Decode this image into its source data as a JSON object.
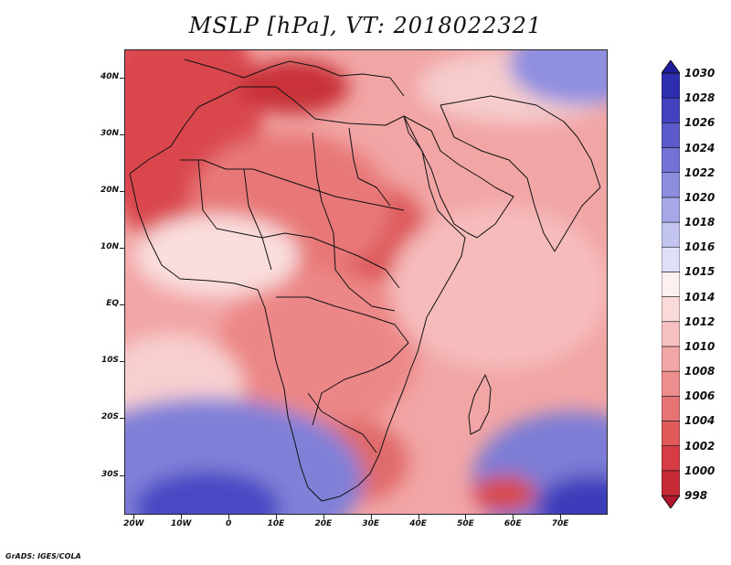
{
  "title": "MSLP [hPa], VT: 2018022321",
  "footer": "GrADS: IGES/COLA",
  "map": {
    "lon_range": [
      -22,
      80
    ],
    "lat_range": [
      -37,
      45
    ],
    "lat_labels": [
      {
        "lat": 40,
        "text": "40N"
      },
      {
        "lat": 30,
        "text": "30N"
      },
      {
        "lat": 20,
        "text": "20N"
      },
      {
        "lat": 10,
        "text": "10N"
      },
      {
        "lat": 0,
        "text": "EQ"
      },
      {
        "lat": -10,
        "text": "10S"
      },
      {
        "lat": -20,
        "text": "20S"
      },
      {
        "lat": -30,
        "text": "30S"
      }
    ],
    "lon_labels": [
      {
        "lon": -20,
        "text": "20W"
      },
      {
        "lon": -10,
        "text": "10W"
      },
      {
        "lon": 0,
        "text": "0"
      },
      {
        "lon": 10,
        "text": "10E"
      },
      {
        "lon": 20,
        "text": "20E"
      },
      {
        "lon": 30,
        "text": "30E"
      },
      {
        "lon": 40,
        "text": "40E"
      },
      {
        "lon": 50,
        "text": "50E"
      },
      {
        "lon": 60,
        "text": "60E"
      },
      {
        "lon": 70,
        "text": "70E"
      }
    ]
  },
  "colorbar": {
    "levels": [
      "998",
      "1000",
      "1002",
      "1004",
      "1006",
      "1008",
      "1010",
      "1012",
      "1014",
      "1015",
      "1016",
      "1018",
      "1020",
      "1022",
      "1024",
      "1026",
      "1028",
      "1030"
    ],
    "colors": [
      "#b2182b",
      "#c62a35",
      "#d73c44",
      "#e05a5a",
      "#e77474",
      "#ee8d8d",
      "#f3a6a6",
      "#f8c1c1",
      "#fbdada",
      "#fdf0f0",
      "#e0e0f8",
      "#c4c4f0",
      "#a8a8e8",
      "#8d8de0",
      "#7373d6",
      "#5a5acb",
      "#4343bf",
      "#2d2daf",
      "#1e1e9c"
    ]
  }
}
